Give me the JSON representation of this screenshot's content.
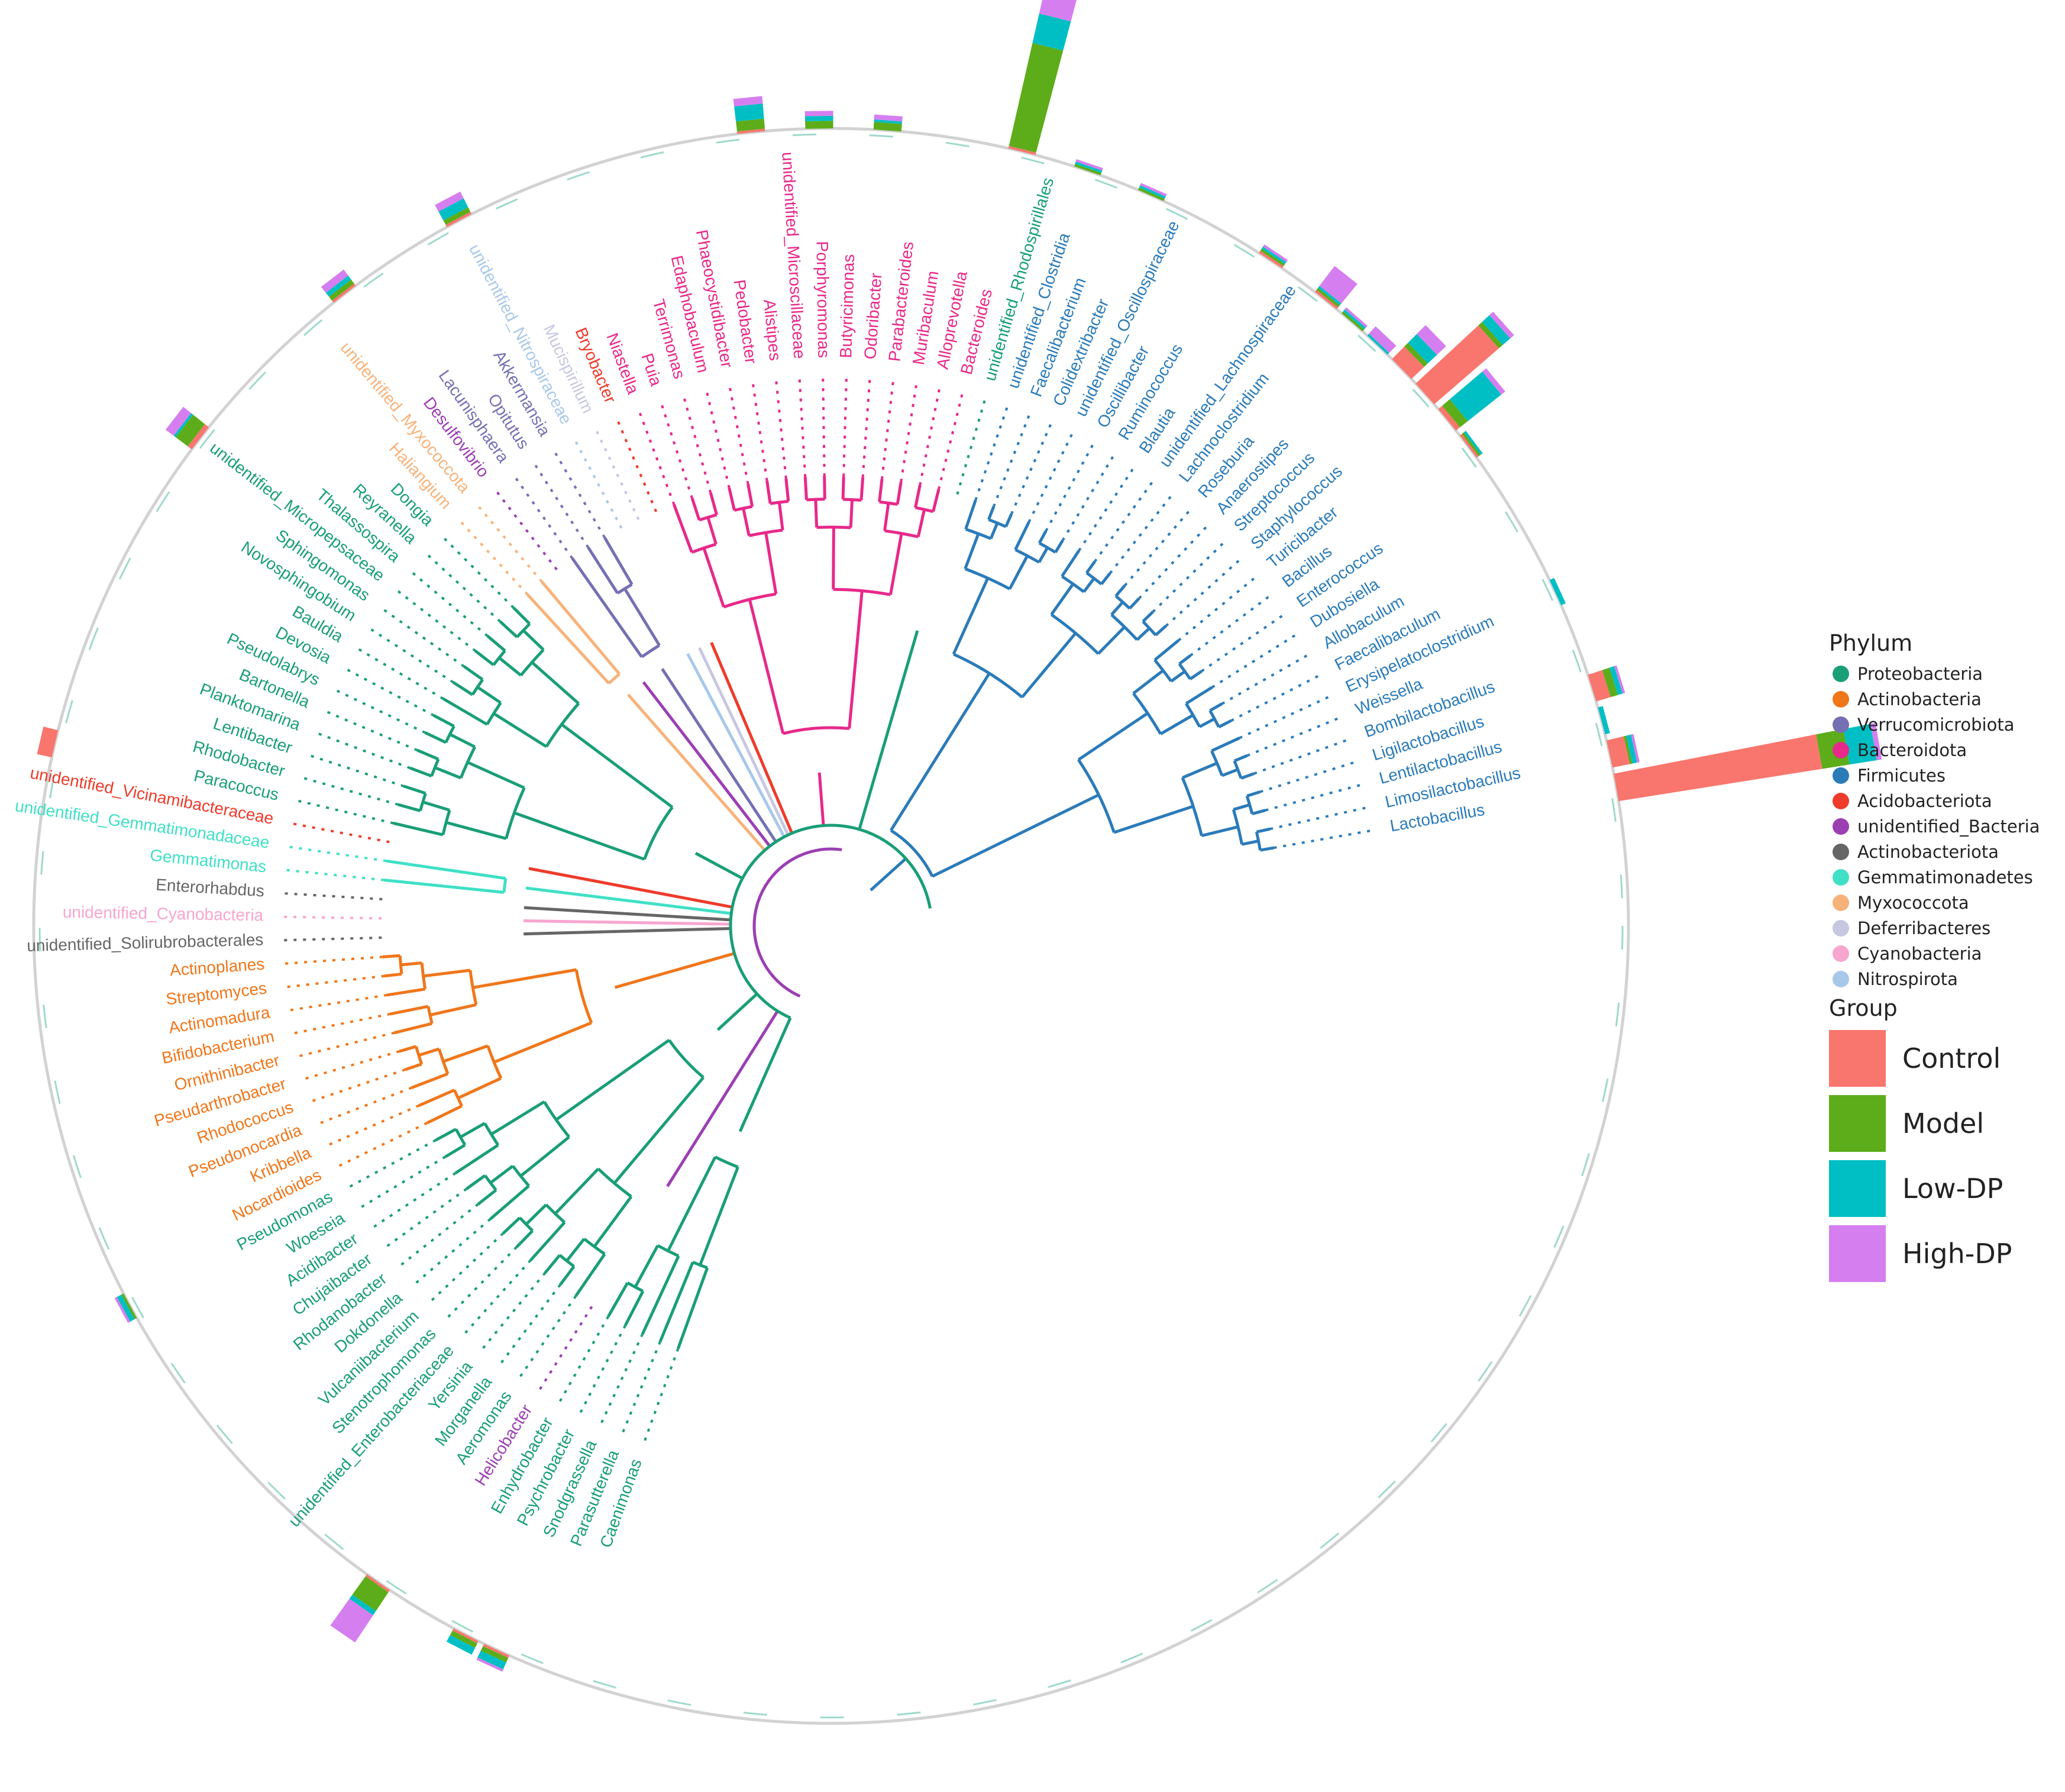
{
  "colors": {
    "Proteobacteria": "#1a9e77",
    "Actinobacteria": "#f0761a",
    "Verrucomicrobiota": "#7570b3",
    "Bacteroidota": "#e7298a",
    "Firmicutes": "#2b7bb9",
    "Acidobacteriota": "#ee3b2b",
    "unidentified_Bacteria": "#9b3fb3",
    "Actinobacteriota": "#666666",
    "Gemmatimonadetes": "#3fe0c5",
    "Myxococcota": "#f7b27a",
    "Deferribacteres": "#c7c7e2",
    "Cyanobacteria": "#f7a6cf",
    "Nitrospirota": "#a8c8ea",
    "Control": "#f8766d",
    "Model": "#5cad19",
    "Low-DP": "#00bfc4",
    "High-DP": "#d57ef0"
  },
  "legend": {
    "phylum_title": "Phylum",
    "phyla": [
      "Proteobacteria",
      "Actinobacteria",
      "Verrucomicrobiota",
      "Bacteroidota",
      "Firmicutes",
      "Acidobacteriota",
      "unidentified_Bacteria",
      "Actinobacteriota",
      "Gemmatimonadetes",
      "Myxococcota",
      "Deferribacteres",
      "Cyanobacteria",
      "Nitrospirota"
    ],
    "group_title": "Group",
    "groups": [
      "Control",
      "Model",
      "Low-DP",
      "High-DP"
    ]
  },
  "clades": [
    {
      "phylum": "Firmicutes",
      "taxa": [
        "Lactobacillus",
        "Limosilactobacillus",
        "Lentilactobacillus",
        "Ligilactobacillus",
        "Bombilactobacillus",
        "Weissella",
        "Erysipelatoclostridium",
        "Faecalibaculum",
        "Allobaculum",
        "Dubosiella",
        "Enterococcus",
        "Bacillus",
        "Turicibacter",
        "Staphylococcus",
        "Streptococcus",
        "Anaerostipes",
        "Roseburia",
        "Lachnoclostridium",
        "unidentified_Lachnospiraceae",
        "Blautia",
        "Ruminococcus",
        "Oscillibacter",
        "unidentified_Oscillospiraceae",
        "Colidextribacter",
        "Faecalibacterium",
        "unidentified_Clostridia"
      ]
    },
    {
      "phylum": "Proteobacteria",
      "taxa": [
        "unidentified_Rhodospirillales"
      ]
    },
    {
      "phylum": "Bacteroidota",
      "taxa": [
        "Bacteroides",
        "Alloprevotella",
        "Muribaculum",
        "Parabacteroides",
        "Odoribacter",
        "Butyricimonas",
        "Porphyromonas",
        "unidentified_Microscillaceae",
        "Alistipes",
        "Pedobacter",
        "Phaeocystidibacter",
        "Edaphobaculum",
        "Terrimonas",
        "Puia",
        "Niastella"
      ]
    },
    {
      "phylum": "Acidobacteriota",
      "taxa": [
        "Bryobacter"
      ]
    },
    {
      "phylum": "Deferribacteres",
      "taxa": [
        "Mucispirillum"
      ]
    },
    {
      "phylum": "Nitrospirota",
      "taxa": [
        "unidentified_Nitrospiraceae"
      ]
    },
    {
      "phylum": "Verrucomicrobiota",
      "taxa": [
        "Akkermansia",
        "Opitutus",
        "Lacunisphaera"
      ]
    },
    {
      "phylum": "unidentified_Bacteria",
      "taxa": [
        "Desulfovibrio"
      ]
    },
    {
      "phylum": "Myxococcota",
      "taxa": [
        "unidentified_Myxococcota",
        "Haliangium"
      ]
    },
    {
      "phylum": "Proteobacteria",
      "taxa": [
        "Dongia",
        "Reyranella",
        "Thalassospira",
        "unidentified_Micropepsaceae",
        "Sphingomonas",
        "Novosphingobium",
        "Bauldia",
        "Devosia",
        "Pseudolabrys",
        "Bartonella",
        "Planktomarina",
        "Lentibacter",
        "Rhodobacter",
        "Paracoccus"
      ]
    },
    {
      "phylum": "Acidobacteriota",
      "taxa": [
        "unidentified_Vicinamibacteraceae"
      ]
    },
    {
      "phylum": "Gemmatimonadetes",
      "taxa": [
        "unidentified_Gemmatimonadaceae",
        "Gemmatimonas"
      ]
    },
    {
      "phylum": "Actinobacteriota",
      "taxa": [
        "Enterorhabdus"
      ]
    },
    {
      "phylum": "Cyanobacteria",
      "taxa": [
        "unidentified_Cyanobacteria"
      ]
    },
    {
      "phylum": "Actinobacteriota",
      "taxa": [
        "unidentified_Solirubrobacterales"
      ]
    },
    {
      "phylum": "Actinobacteria",
      "taxa": [
        "Actinoplanes",
        "Streptomyces",
        "Actinomadura",
        "Bifidobacterium",
        "Ornithinibacter",
        "Pseudarthrobacter",
        "Rhodococcus",
        "Pseudonocardia",
        "Kribbella",
        "Nocardioides"
      ]
    },
    {
      "phylum": "Proteobacteria",
      "taxa": [
        "Pseudomonas",
        "Woeseia",
        "Acidibacter",
        "Chujaibacter",
        "Rhodanobacter",
        "Dokdonella",
        "Vulcaniibacterium",
        "Stenotrophomonas",
        "unidentified_Enterobacteriaceae",
        "Yersinia",
        "Morganella",
        "Aeromonas"
      ]
    },
    {
      "phylum": "unidentified_Bacteria",
      "taxa": [
        "Helicobacter"
      ]
    },
    {
      "phylum": "Proteobacteria",
      "taxa": [
        "Enhydrobacter",
        "Psychrobacter",
        "Snodgrassella",
        "Parasutterella",
        "Caenimonas"
      ]
    }
  ],
  "ring_bars": [
    {
      "taxon": "Lactobacillus",
      "Control": 82,
      "Model": 11,
      "Low-DP": 11,
      "High-DP": 2
    },
    {
      "taxon": "Limosilactobacillus",
      "Control": 7,
      "Model": 1,
      "Low-DP": 2,
      "High-DP": 1
    },
    {
      "taxon": "Lentilactobacillus",
      "Control": 0,
      "Model": 0,
      "Low-DP": 2,
      "High-DP": 0
    },
    {
      "taxon": "Ligilactobacillus",
      "Control": 6,
      "Model": 3,
      "Low-DP": 2,
      "High-DP": 1
    },
    {
      "taxon": "Erysipelatoclostridium",
      "Control": 0,
      "Model": 0,
      "Low-DP": 2,
      "High-DP": 0
    },
    {
      "taxon": "Bacillus",
      "Control": 1,
      "Model": 1,
      "Low-DP": 1,
      "High-DP": 0
    },
    {
      "taxon": "Turicibacter",
      "Control": 2,
      "Model": 4,
      "Low-DP": 17,
      "High-DP": 2
    },
    {
      "taxon": "Staphylococcus",
      "Control": 34,
      "Model": 2,
      "Low-DP": 4,
      "High-DP": 2
    },
    {
      "taxon": "Streptococcus",
      "Control": 7,
      "Model": 2,
      "Low-DP": 5,
      "High-DP": 5
    },
    {
      "taxon": "Anaerostipes",
      "Control": 0,
      "Model": 0,
      "Low-DP": 1,
      "High-DP": 4
    },
    {
      "taxon": "Roseburia",
      "Control": 0,
      "Model": 1,
      "Low-DP": 1,
      "High-DP": 1
    },
    {
      "taxon": "Lachnoclostridium",
      "Control": 1,
      "Model": 1,
      "Low-DP": 1,
      "High-DP": 10
    },
    {
      "taxon": "Blautia",
      "Control": 1,
      "Model": 1,
      "Low-DP": 1,
      "High-DP": 1
    },
    {
      "taxon": "Colidextribacter",
      "Control": 0,
      "Model": 1,
      "Low-DP": 1,
      "High-DP": 1
    },
    {
      "taxon": "unidentified_Clostridia",
      "Control": 0,
      "Model": 1,
      "Low-DP": 1,
      "High-DP": 1
    },
    {
      "taxon": "Bacteroides",
      "Control": 1,
      "Model": 42,
      "Low-DP": 12,
      "High-DP": 17
    },
    {
      "taxon": "Odoribacter",
      "Control": 0,
      "Model": 3,
      "Low-DP": 1,
      "High-DP": 2
    },
    {
      "taxon": "Porphyromonas",
      "Control": 0,
      "Model": 3,
      "Low-DP": 2,
      "High-DP": 2
    },
    {
      "taxon": "Alistipes",
      "Control": 1,
      "Model": 4,
      "Low-DP": 6,
      "High-DP": 3
    },
    {
      "taxon": "unidentified_Nitrospiraceae",
      "Control": 1,
      "Model": 2,
      "Low-DP": 4,
      "High-DP": 3
    },
    {
      "taxon": "Desulfovibrio",
      "Control": 1,
      "Model": 2,
      "Low-DP": 2,
      "High-DP": 3
    },
    {
      "taxon": "unidentified_Micropepsaceae",
      "Control": 2,
      "Model": 6,
      "Low-DP": 1,
      "High-DP": 4
    },
    {
      "taxon": "Paracoccus",
      "Control": 6,
      "Model": 0,
      "Low-DP": 0,
      "High-DP": 0
    },
    {
      "taxon": "Pseudomonas",
      "Control": 0,
      "Model": 1,
      "Low-DP": 2,
      "High-DP": 1
    },
    {
      "taxon": "Aeromonas",
      "Control": 1,
      "Model": 9,
      "Low-DP": 2,
      "High-DP": 13
    },
    {
      "taxon": "Psychrobacter",
      "Control": 1,
      "Model": 2,
      "Low-DP": 3,
      "High-DP": 0
    },
    {
      "taxon": "Snodgrassella",
      "Control": 1,
      "Model": 2,
      "Low-DP": 3,
      "High-DP": 1
    }
  ]
}
